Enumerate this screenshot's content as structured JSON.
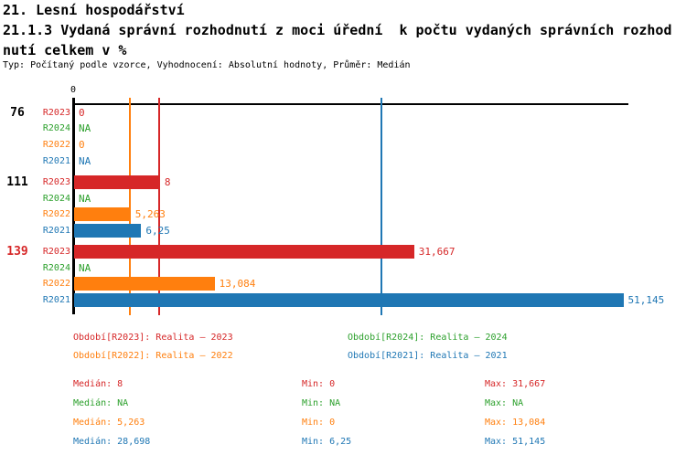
{
  "header": {
    "title_line1": "21. Lesní hospodářství",
    "title_line2": "21.1.3 Vydaná správní rozhodnutí z moci úřední  k počtu vydaných správních rozhod",
    "title_line3": "nutí celkem v %",
    "subtitle": "Typ: Počítaný podle vzorce, Vyhodnocení: Absolutní hodnoty, Průměr: Medián"
  },
  "colors": {
    "R2023": "#d62728",
    "R2024": "#2ca02c",
    "R2022": "#ff7f0e",
    "R2021": "#1f77b4",
    "axis": "#000000",
    "group_label_highlight": "#d62728"
  },
  "chart_data": {
    "type": "bar",
    "orientation": "horizontal",
    "x_axis": {
      "tick_labels": [
        "0"
      ],
      "range": [
        0,
        51.7
      ],
      "grid": false
    },
    "series_order": [
      "R2023",
      "R2024",
      "R2022",
      "R2021"
    ],
    "groups": [
      {
        "label": "76",
        "label_color": "#000000",
        "rows": [
          {
            "series": "R2023",
            "value": 0,
            "display": "0"
          },
          {
            "series": "R2024",
            "value": null,
            "display": "NA"
          },
          {
            "series": "R2022",
            "value": 0,
            "display": "0"
          },
          {
            "series": "R2021",
            "value": null,
            "display": "NA"
          }
        ]
      },
      {
        "label": "111",
        "label_color": "#000000",
        "rows": [
          {
            "series": "R2023",
            "value": 8,
            "display": "8"
          },
          {
            "series": "R2024",
            "value": null,
            "display": "NA"
          },
          {
            "series": "R2022",
            "value": 5.263,
            "display": "5,263"
          },
          {
            "series": "R2021",
            "value": 6.25,
            "display": "6,25"
          }
        ]
      },
      {
        "label": "139",
        "label_color": "#d62728",
        "rows": [
          {
            "series": "R2023",
            "value": 31.667,
            "display": "31,667"
          },
          {
            "series": "R2024",
            "value": null,
            "display": "NA"
          },
          {
            "series": "R2022",
            "value": 13.084,
            "display": "13,084"
          },
          {
            "series": "R2021",
            "value": 51.145,
            "display": "51,145"
          }
        ]
      }
    ],
    "median_lines": [
      {
        "series": "R2023",
        "value": 8
      },
      {
        "series": "R2022",
        "value": 5.263
      },
      {
        "series": "R2021",
        "value": 28.698
      }
    ]
  },
  "legend": {
    "items": [
      {
        "series": "R2023",
        "text": "Období[R2023]: Realita – 2023"
      },
      {
        "series": "R2024",
        "text": "Období[R2024]: Realita – 2024"
      },
      {
        "series": "R2022",
        "text": "Období[R2022]: Realita – 2022"
      },
      {
        "series": "R2021",
        "text": "Období[R2021]: Realita – 2021"
      }
    ]
  },
  "stats": {
    "rows": [
      {
        "series": "R2023",
        "median": "Medián: 8",
        "min": "Min: 0",
        "max": "Max: 31,667"
      },
      {
        "series": "R2024",
        "median": "Medián: NA",
        "min": "Min: NA",
        "max": "Max: NA"
      },
      {
        "series": "R2022",
        "median": "Medián: 5,263",
        "min": "Min: 0",
        "max": "Max: 13,084"
      },
      {
        "series": "R2021",
        "median": "Medián: 28,698",
        "min": "Min: 6,25",
        "max": "Max: 51,145"
      }
    ]
  }
}
